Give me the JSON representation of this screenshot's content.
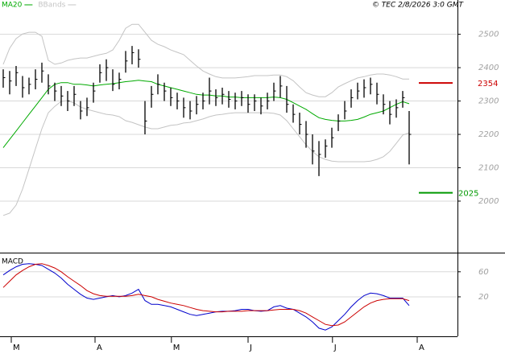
{
  "chart_data": [
    {
      "type": "ohlc",
      "credit": "© TEC 2/8/2026 3:0 GMT",
      "xlim": [
        -0.5,
        70.5
      ],
      "ylim": [
        1848,
        2569
      ],
      "yticks": [
        2000,
        2100,
        2200,
        2300,
        2400,
        2500
      ],
      "grid": true,
      "ohlc": {
        "color": "#000000",
        "high": [
          2395,
          2390,
          2405,
          2375,
          2370,
          2395,
          2415,
          2380,
          2355,
          2345,
          2330,
          2345,
          2300,
          2310,
          2355,
          2410,
          2425,
          2395,
          2385,
          2450,
          2465,
          2455,
          2300,
          2345,
          2380,
          2355,
          2340,
          2325,
          2310,
          2300,
          2315,
          2325,
          2370,
          2335,
          2340,
          2330,
          2325,
          2330,
          2320,
          2320,
          2310,
          2325,
          2355,
          2375,
          2345,
          2290,
          2265,
          2240,
          2200,
          2180,
          2185,
          2220,
          2260,
          2300,
          2335,
          2355,
          2365,
          2370,
          2355,
          2320,
          2300,
          2305,
          2330,
          2270
        ],
        "low": [
          2340,
          2320,
          2345,
          2310,
          2320,
          2335,
          2355,
          2320,
          2300,
          2285,
          2270,
          2285,
          2245,
          2255,
          2295,
          2355,
          2360,
          2330,
          2335,
          2385,
          2410,
          2400,
          2200,
          2280,
          2320,
          2300,
          2285,
          2275,
          2250,
          2245,
          2260,
          2275,
          2290,
          2285,
          2290,
          2280,
          2275,
          2285,
          2265,
          2270,
          2260,
          2275,
          2300,
          2310,
          2265,
          2235,
          2200,
          2160,
          2110,
          2075,
          2130,
          2160,
          2210,
          2245,
          2280,
          2305,
          2310,
          2320,
          2290,
          2260,
          2230,
          2250,
          2280,
          2110
        ],
        "close": [
          2370,
          2360,
          2385,
          2340,
          2350,
          2365,
          2390,
          2345,
          2330,
          2315,
          2300,
          2320,
          2270,
          2280,
          2330,
          2385,
          2400,
          2350,
          2365,
          2420,
          2445,
          2425,
          2240,
          2320,
          2350,
          2330,
          2310,
          2300,
          2280,
          2270,
          2290,
          2300,
          2330,
          2310,
          2320,
          2305,
          2300,
          2310,
          2290,
          2300,
          2285,
          2300,
          2330,
          2345,
          2290,
          2260,
          2230,
          2200,
          2150,
          2140,
          2165,
          2190,
          2240,
          2270,
          2310,
          2330,
          2340,
          2350,
          2320,
          2290,
          2260,
          2280,
          2310,
          2200
        ]
      },
      "series": [
        {
          "name": "MA20",
          "color": "#00aa00",
          "values": [
            2160,
            2185,
            2210,
            2235,
            2260,
            2285,
            2310,
            2335,
            2350,
            2355,
            2355,
            2350,
            2350,
            2348,
            2345,
            2348,
            2350,
            2352,
            2355,
            2358,
            2360,
            2362,
            2360,
            2358,
            2350,
            2345,
            2340,
            2335,
            2330,
            2325,
            2320,
            2318,
            2318,
            2315,
            2315,
            2312,
            2312,
            2310,
            2310,
            2310,
            2310,
            2310,
            2312,
            2310,
            2305,
            2295,
            2285,
            2275,
            2262,
            2250,
            2245,
            2242,
            2240,
            2240,
            2242,
            2245,
            2252,
            2260,
            2265,
            2270,
            2280,
            2290,
            2298,
            2292
          ]
        },
        {
          "name": "BBands",
          "color": "#c4c4c4",
          "upper": [
            2410,
            2458,
            2487,
            2501,
            2506,
            2506,
            2494,
            2422,
            2410,
            2414,
            2422,
            2426,
            2429,
            2429,
            2434,
            2439,
            2443,
            2453,
            2482,
            2518,
            2530,
            2530,
            2506,
            2482,
            2470,
            2463,
            2453,
            2446,
            2439,
            2422,
            2405,
            2390,
            2381,
            2373,
            2369,
            2369,
            2369,
            2371,
            2373,
            2376,
            2376,
            2376,
            2378,
            2378,
            2373,
            2361,
            2342,
            2325,
            2318,
            2313,
            2313,
            2325,
            2342,
            2352,
            2361,
            2369,
            2373,
            2378,
            2381,
            2381,
            2378,
            2373,
            2366,
            2366
          ],
          "lower": [
            1957,
            1964,
            1988,
            2036,
            2096,
            2157,
            2217,
            2265,
            2284,
            2299,
            2301,
            2294,
            2282,
            2275,
            2270,
            2265,
            2260,
            2258,
            2253,
            2241,
            2236,
            2229,
            2222,
            2217,
            2217,
            2222,
            2227,
            2229,
            2234,
            2236,
            2241,
            2246,
            2253,
            2258,
            2260,
            2263,
            2265,
            2265,
            2265,
            2265,
            2265,
            2265,
            2263,
            2258,
            2241,
            2217,
            2193,
            2169,
            2149,
            2133,
            2125,
            2120,
            2118,
            2118,
            2118,
            2118,
            2118,
            2120,
            2125,
            2133,
            2149,
            2173,
            2198,
            2205
          ]
        }
      ],
      "levels": [
        {
          "value": 2354,
          "color": "#cc0000"
        },
        {
          "value": 2025,
          "color": "#009900"
        }
      ]
    },
    {
      "type": "line",
      "title": "MACD",
      "xlim": [
        -0.5,
        70.5
      ],
      "xticks": [
        {
          "value": 1.25,
          "label": "M"
        },
        {
          "value": 14.25,
          "label": "A"
        },
        {
          "value": 26.1,
          "label": "M"
        },
        {
          "value": 38,
          "label": "J"
        },
        {
          "value": 51.1,
          "label": "J"
        },
        {
          "value": 64.25,
          "label": "A"
        }
      ],
      "ylim": [
        -43,
        88
      ],
      "yticks": [
        20,
        60
      ],
      "grid": true,
      "series": [
        {
          "color": "#0000cc",
          "values": [
            55,
            62,
            68,
            72,
            73,
            72,
            70,
            64,
            58,
            50,
            40,
            32,
            24,
            18,
            16,
            18,
            20,
            22,
            20,
            22,
            26,
            32,
            14,
            8,
            8,
            6,
            4,
            0,
            -4,
            -8,
            -10,
            -8,
            -6,
            -4,
            -3,
            -3,
            -2,
            0,
            0,
            -2,
            -3,
            -2,
            4,
            6,
            2,
            0,
            -6,
            -12,
            -20,
            -30,
            -33,
            -28,
            -18,
            -8,
            4,
            14,
            22,
            26,
            25,
            22,
            18,
            18,
            18,
            6
          ]
        },
        {
          "color": "#cc0000",
          "values": [
            35,
            45,
            55,
            62,
            68,
            72,
            73,
            70,
            66,
            60,
            52,
            45,
            38,
            30,
            25,
            22,
            21,
            21,
            21,
            21,
            22,
            24,
            22,
            20,
            16,
            13,
            10,
            8,
            6,
            3,
            0,
            -2,
            -3,
            -4,
            -4,
            -3,
            -3,
            -3,
            -2,
            -2,
            -2,
            -2,
            -1,
            0,
            0,
            0,
            -2,
            -6,
            -12,
            -18,
            -24,
            -26,
            -25,
            -20,
            -12,
            -4,
            4,
            10,
            14,
            16,
            17,
            17,
            17,
            14
          ]
        }
      ]
    }
  ]
}
